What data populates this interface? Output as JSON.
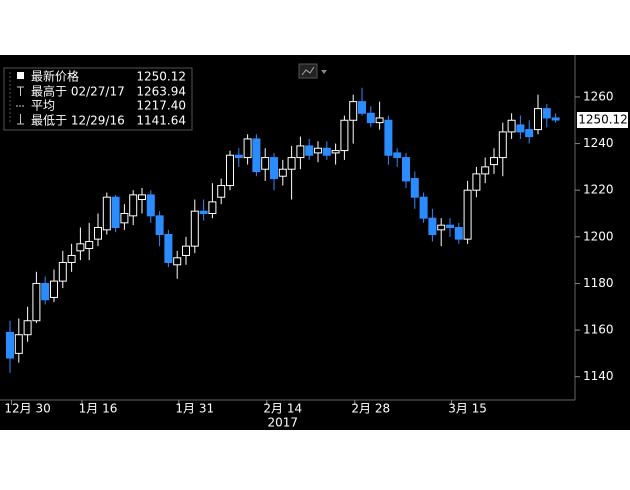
{
  "chart_data": {
    "type": "candlestick",
    "legend": [
      {
        "label": "最新价格",
        "value": 1250.12
      },
      {
        "label": "最高于 02/27/17",
        "value": 1263.94
      },
      {
        "label": "平均",
        "value": {
          "value": 1217.4,
          "label": "1217.40"
        }
      },
      {
        "label": "最低于 12/29/16",
        "value": 1141.64
      }
    ],
    "categories": [
      null,
      null,
      "12月 30",
      null,
      null,
      null,
      null,
      null,
      null,
      null,
      "1月 16",
      null,
      null,
      null,
      null,
      null,
      null,
      null,
      null,
      null,
      null,
      "1月 31",
      null,
      null,
      null,
      null,
      null,
      null,
      null,
      null,
      null,
      "2月 14",
      null,
      null,
      null,
      null,
      null,
      null,
      null,
      null,
      null,
      "2月 28",
      null,
      null,
      null,
      null,
      null,
      null,
      null,
      null,
      null,
      null,
      "3月 15",
      null,
      null,
      null,
      null,
      null,
      null,
      null,
      null,
      null,
      null
    ],
    "year_label": "2017",
    "open": [
      1159,
      1150,
      1158,
      1164,
      1180,
      1174,
      1181,
      1189,
      1194,
      1195,
      1199,
      1203,
      1217,
      1206,
      1209,
      1216,
      1218,
      1209,
      1201,
      1188,
      1192,
      1196,
      1211,
      1210,
      1217,
      1222,
      1235,
      1234,
      1242,
      1229,
      1234,
      1226,
      1229,
      1234,
      1239,
      1236,
      1238,
      1236,
      1237,
      1250,
      1258,
      1253,
      1249,
      1250,
      1236,
      1234,
      1225,
      1217,
      1208,
      1203,
      1205,
      1204,
      1199,
      1220,
      1227,
      1231,
      1234,
      1245,
      1248,
      1246,
      1246,
      1255,
      1251
    ],
    "high": [
      1164,
      1165,
      1170,
      1185,
      1183,
      1186,
      1194,
      1197,
      1204,
      1206,
      1210,
      1219,
      1218,
      1214,
      1220,
      1221,
      1220,
      1211,
      1203,
      1194,
      1200,
      1216,
      1216,
      1223,
      1225,
      1237,
      1238,
      1244,
      1244,
      1238,
      1236,
      1233,
      1239,
      1243,
      1242,
      1241,
      1241,
      1240,
      1252,
      1261,
      1263.94,
      1256,
      1258,
      1252,
      1238,
      1236,
      1228,
      1219,
      1212,
      1208,
      1208,
      1206,
      1224,
      1230,
      1234,
      1238,
      1249,
      1253,
      1252,
      1250,
      1261,
      1257,
      1253
    ],
    "low": [
      1141.64,
      1146,
      1155,
      1163,
      1171,
      1172,
      1178,
      1185,
      1190,
      1190,
      1196,
      1201,
      1202,
      1203,
      1205,
      1210,
      1206,
      1196,
      1187,
      1182,
      1188,
      1193,
      1207,
      1208,
      1214,
      1220,
      1230,
      1231,
      1226,
      1224,
      1220,
      1222,
      1216,
      1229,
      1233,
      1232,
      1233,
      1231,
      1233,
      1240,
      1252,
      1247,
      1246,
      1231,
      1230,
      1221,
      1212,
      1206,
      1198,
      1196,
      1200,
      1197,
      1197,
      1217,
      1223,
      1227,
      1226,
      1242,
      1242,
      1240,
      1244,
      1247,
      1249
    ],
    "close": [
      1148,
      1158,
      1164,
      1180,
      1173,
      1181,
      1189,
      1192,
      1197,
      1198,
      1204,
      1217,
      1204,
      1210,
      1218,
      1218,
      1209,
      1201,
      1189,
      1191,
      1196,
      1211,
      1210,
      1215,
      1222,
      1235,
      1234,
      1242,
      1228,
      1234,
      1225,
      1229,
      1234,
      1239,
      1235,
      1238,
      1235,
      1237,
      1250,
      1258,
      1253,
      1249,
      1251,
      1235,
      1234,
      1224,
      1217,
      1208,
      1201,
      1205,
      1204,
      1199,
      1220,
      1227,
      1230,
      1234,
      1245,
      1250,
      1245,
      1243,
      1255,
      1251,
      1250.12
    ],
    "up_color": "#ffffff",
    "down_color": "#2b8cff",
    "ylim": [
      1130,
      1278
    ],
    "yticks": [
      1140,
      1160,
      1180,
      1200,
      1220,
      1240,
      1260
    ],
    "grid": false
  }
}
